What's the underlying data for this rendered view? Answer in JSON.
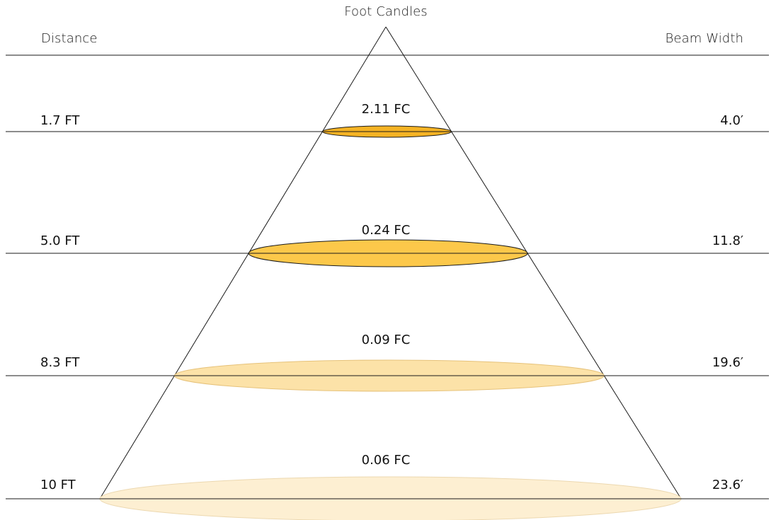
{
  "headers": {
    "distance": "Distance",
    "foot_candles": "Foot Candles",
    "beam_width": "Beam Width"
  },
  "chart_data": {
    "type": "photometric-beam-diagram",
    "levels": [
      {
        "distance": "1.7 FT",
        "foot_candles": "2.11 FC",
        "beam_width": "4.0′"
      },
      {
        "distance": "5.0 FT",
        "foot_candles": "0.24 FC",
        "beam_width": "11.8′"
      },
      {
        "distance": "8.3 FT",
        "foot_candles": "0.09 FC",
        "beam_width": "19.6′"
      },
      {
        "distance": "10 FT",
        "foot_candles": "0.06 FC",
        "beam_width": "23.6′"
      }
    ]
  },
  "colors": {
    "line": "#1a1a1a",
    "ellipse_fills": [
      "#f5b324",
      "#fcc84a",
      "#fce2a8",
      "#fdefd2"
    ],
    "ellipse_strokes": [
      "#1a1a1a",
      "#1a1a1a",
      "#e6c27a",
      "#ecd8b0"
    ]
  }
}
